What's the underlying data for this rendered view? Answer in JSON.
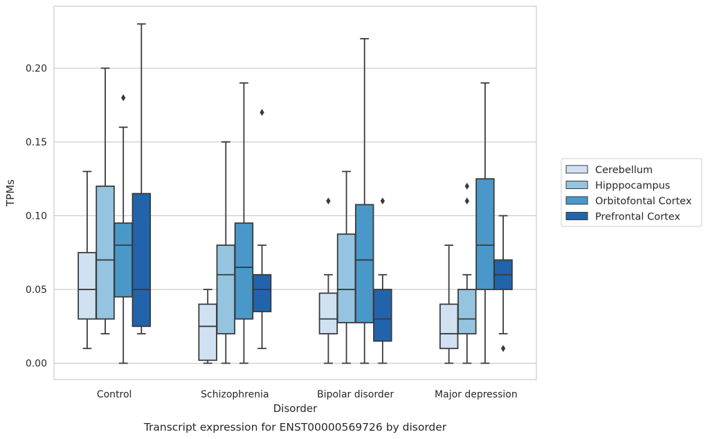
{
  "chart_data": {
    "type": "box",
    "title": "",
    "caption": "Transcript expression for ENST00000569726 by disorder",
    "xlabel": "Disorder",
    "ylabel": "TPMs",
    "ylim": [
      -0.011,
      0.242
    ],
    "yticks": [
      0.0,
      0.05,
      0.1,
      0.15,
      0.2
    ],
    "ytick_labels": [
      "0.00",
      "0.05",
      "0.10",
      "0.15",
      "0.20"
    ],
    "grid": "horizontal",
    "legend_position": "right",
    "categories": [
      "Control",
      "Schizophrenia",
      "Bipolar disorder",
      "Major depression"
    ],
    "series": [
      {
        "name": "Cerebellum",
        "color": "#d0e1f2",
        "boxes": [
          {
            "whisker_low": 0.01,
            "q1": 0.03,
            "median": 0.05,
            "q3": 0.075,
            "whisker_high": 0.13,
            "outliers": []
          },
          {
            "whisker_low": 0.0,
            "q1": 0.002,
            "median": 0.025,
            "q3": 0.04,
            "whisker_high": 0.05,
            "outliers": []
          },
          {
            "whisker_low": 0.0,
            "q1": 0.02,
            "median": 0.03,
            "q3": 0.0475,
            "whisker_high": 0.06,
            "outliers": [
              0.11
            ]
          },
          {
            "whisker_low": 0.0,
            "q1": 0.01,
            "median": 0.02,
            "q3": 0.04,
            "whisker_high": 0.08,
            "outliers": []
          }
        ]
      },
      {
        "name": "Hipppocampus",
        "color": "#94c4df",
        "boxes": [
          {
            "whisker_low": 0.02,
            "q1": 0.03,
            "median": 0.07,
            "q3": 0.12,
            "whisker_high": 0.2,
            "outliers": []
          },
          {
            "whisker_low": 0.0,
            "q1": 0.02,
            "median": 0.06,
            "q3": 0.08,
            "whisker_high": 0.15,
            "outliers": []
          },
          {
            "whisker_low": 0.0,
            "q1": 0.0275,
            "median": 0.05,
            "q3": 0.0875,
            "whisker_high": 0.13,
            "outliers": []
          },
          {
            "whisker_low": 0.0,
            "q1": 0.02,
            "median": 0.03,
            "q3": 0.05,
            "whisker_high": 0.06,
            "outliers": [
              0.11,
              0.12
            ]
          }
        ]
      },
      {
        "name": "Orbitofontal Cortex",
        "color": "#4a98c9",
        "boxes": [
          {
            "whisker_low": 0.0,
            "q1": 0.045,
            "median": 0.08,
            "q3": 0.095,
            "whisker_high": 0.16,
            "outliers": [
              0.18
            ]
          },
          {
            "whisker_low": 0.0,
            "q1": 0.03,
            "median": 0.065,
            "q3": 0.095,
            "whisker_high": 0.19,
            "outliers": []
          },
          {
            "whisker_low": 0.0,
            "q1": 0.0275,
            "median": 0.07,
            "q3": 0.1075,
            "whisker_high": 0.22,
            "outliers": []
          },
          {
            "whisker_low": 0.0,
            "q1": 0.05,
            "median": 0.08,
            "q3": 0.125,
            "whisker_high": 0.19,
            "outliers": []
          }
        ]
      },
      {
        "name": "Prefrontal Cortex",
        "color": "#2164ab",
        "boxes": [
          {
            "whisker_low": 0.02,
            "q1": 0.025,
            "median": 0.05,
            "q3": 0.115,
            "whisker_high": 0.23,
            "outliers": []
          },
          {
            "whisker_low": 0.01,
            "q1": 0.035,
            "median": 0.05,
            "q3": 0.06,
            "whisker_high": 0.08,
            "outliers": [
              0.17
            ]
          },
          {
            "whisker_low": 0.0,
            "q1": 0.015,
            "median": 0.03,
            "q3": 0.05,
            "whisker_high": 0.06,
            "outliers": [
              0.11
            ]
          },
          {
            "whisker_low": 0.02,
            "q1": 0.05,
            "median": 0.06,
            "q3": 0.07,
            "whisker_high": 0.1,
            "outliers": [
              0.01
            ]
          }
        ]
      }
    ]
  }
}
